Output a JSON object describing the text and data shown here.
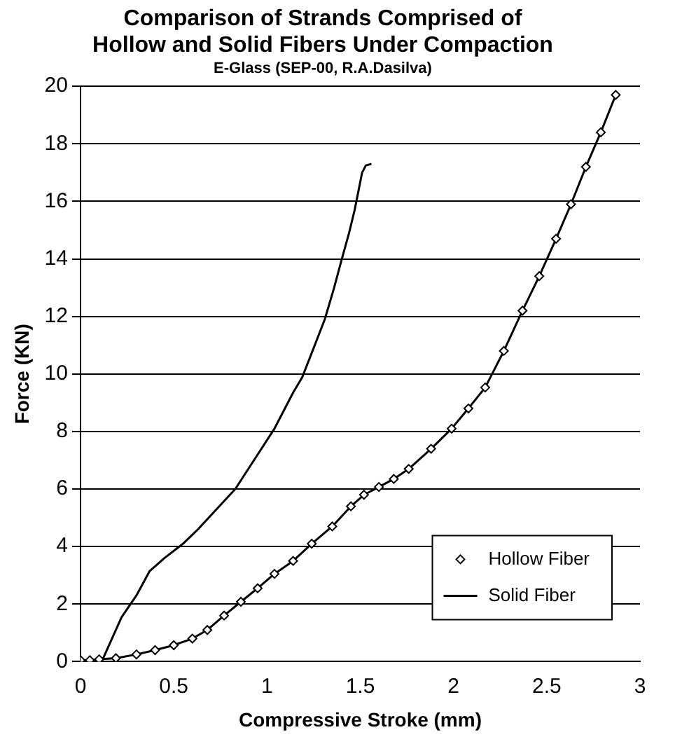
{
  "chart_data": {
    "type": "line",
    "title": "Comparison of Strands Comprised of\nHollow and Solid Fibers Under Compaction",
    "subtitle": "E-Glass (SEP-00, R.A.Dasilva)",
    "xlabel": "Compressive Stroke (mm)",
    "ylabel": "Force (KN)",
    "xlim": [
      0,
      3
    ],
    "xticks": [
      0,
      0.5,
      1,
      1.5,
      2,
      2.5,
      3
    ],
    "ylim": [
      0,
      20
    ],
    "yticks": [
      0,
      2,
      4,
      6,
      8,
      10,
      12,
      14,
      16,
      18,
      20
    ],
    "grid": "y",
    "legend": "bottom right",
    "series": [
      {
        "name": "Hollow Fiber",
        "color": "#000000",
        "marker": "diamond",
        "line_style": "solid",
        "x": [
          0,
          0.05,
          0.1,
          0.19,
          0.3,
          0.4,
          0.5,
          0.6,
          0.68,
          0.77,
          0.86,
          0.95,
          1.04,
          1.14,
          1.24,
          1.35,
          1.45,
          1.52,
          1.6,
          1.68,
          1.76,
          1.88,
          1.99,
          2.08,
          2.17,
          2.27,
          2.37,
          2.46,
          2.55,
          2.63,
          2.71,
          2.79,
          2.87
        ],
        "values": [
          0.05,
          0.05,
          0.08,
          0.12,
          0.25,
          0.4,
          0.57,
          0.8,
          1.1,
          1.6,
          2.08,
          2.55,
          3.05,
          3.5,
          4.1,
          4.7,
          5.4,
          5.8,
          6.07,
          6.35,
          6.7,
          7.4,
          8.1,
          8.8,
          9.53,
          10.8,
          12.2,
          13.4,
          14.7,
          15.9,
          17.2,
          18.4,
          19.7
        ]
      },
      {
        "name": "Solid Fiber",
        "color": "#000000",
        "marker": "none",
        "line_style": "solid",
        "x": [
          0.1,
          0.12,
          0.22,
          0.3,
          0.37,
          0.45,
          0.55,
          0.63,
          0.73,
          0.83,
          0.93,
          1.04,
          1.14,
          1.19,
          1.25,
          1.31,
          1.36,
          1.4,
          1.44,
          1.47,
          1.51,
          1.53,
          1.56
        ],
        "values": [
          0,
          0.09,
          1.54,
          2.3,
          3.14,
          3.6,
          4.1,
          4.6,
          5.3,
          6.0,
          7.0,
          8.1,
          9.35,
          9.9,
          10.9,
          11.9,
          13.0,
          13.97,
          14.9,
          15.7,
          17.0,
          17.25,
          17.3
        ]
      }
    ]
  }
}
